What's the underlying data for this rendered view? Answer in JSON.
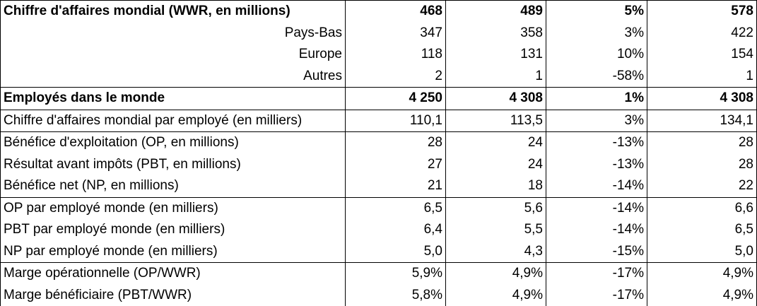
{
  "rows": [
    {
      "label": "Chiffre d'affaires mondial (WWR, en millions)",
      "v1": "468",
      "v2": "489",
      "v3": "5%",
      "v4": "578"
    },
    {
      "label": "Pays-Bas",
      "v1": "347",
      "v2": "358",
      "v3": "3%",
      "v4": "422"
    },
    {
      "label": "Europe",
      "v1": "118",
      "v2": "131",
      "v3": "10%",
      "v4": "154"
    },
    {
      "label": "Autres",
      "v1": "2",
      "v2": "1",
      "v3": "-58%",
      "v4": "1"
    },
    {
      "label": "Employés dans le monde",
      "v1": "4 250",
      "v2": "4 308",
      "v3": "1%",
      "v4": "4 308"
    },
    {
      "label": "Chiffre d'affaires mondial par employé (en milliers)",
      "v1": "110,1",
      "v2": "113,5",
      "v3": "3%",
      "v4": "134,1"
    },
    {
      "label": "Bénéfice d'exploitation (OP, en millions)",
      "v1": "28",
      "v2": "24",
      "v3": "-13%",
      "v4": "28"
    },
    {
      "label": "Résultat avant impôts (PBT, en millions)",
      "v1": "27",
      "v2": "24",
      "v3": "-13%",
      "v4": "28"
    },
    {
      "label": "Bénéfice net (NP, en millions)",
      "v1": "21",
      "v2": "18",
      "v3": "-14%",
      "v4": "22"
    },
    {
      "label": "OP par employé monde (en milliers)",
      "v1": "6,5",
      "v2": "5,6",
      "v3": "-14%",
      "v4": "6,6"
    },
    {
      "label": "PBT par employé monde (en milliers)",
      "v1": "6,4",
      "v2": "5,5",
      "v3": "-14%",
      "v4": "6,5"
    },
    {
      "label": "NP par employé monde (en milliers)",
      "v1": "5,0",
      "v2": "4,3",
      "v3": "-15%",
      "v4": "5,0"
    },
    {
      "label": "Marge opérationnelle (OP/WWR)",
      "v1": "5,9%",
      "v2": "4,9%",
      "v3": "-17%",
      "v4": "4,9%"
    },
    {
      "label": "Marge bénéficiaire (PBT/WWR)",
      "v1": "5,8%",
      "v2": "4,9%",
      "v3": "-17%",
      "v4": "4,9%"
    }
  ]
}
